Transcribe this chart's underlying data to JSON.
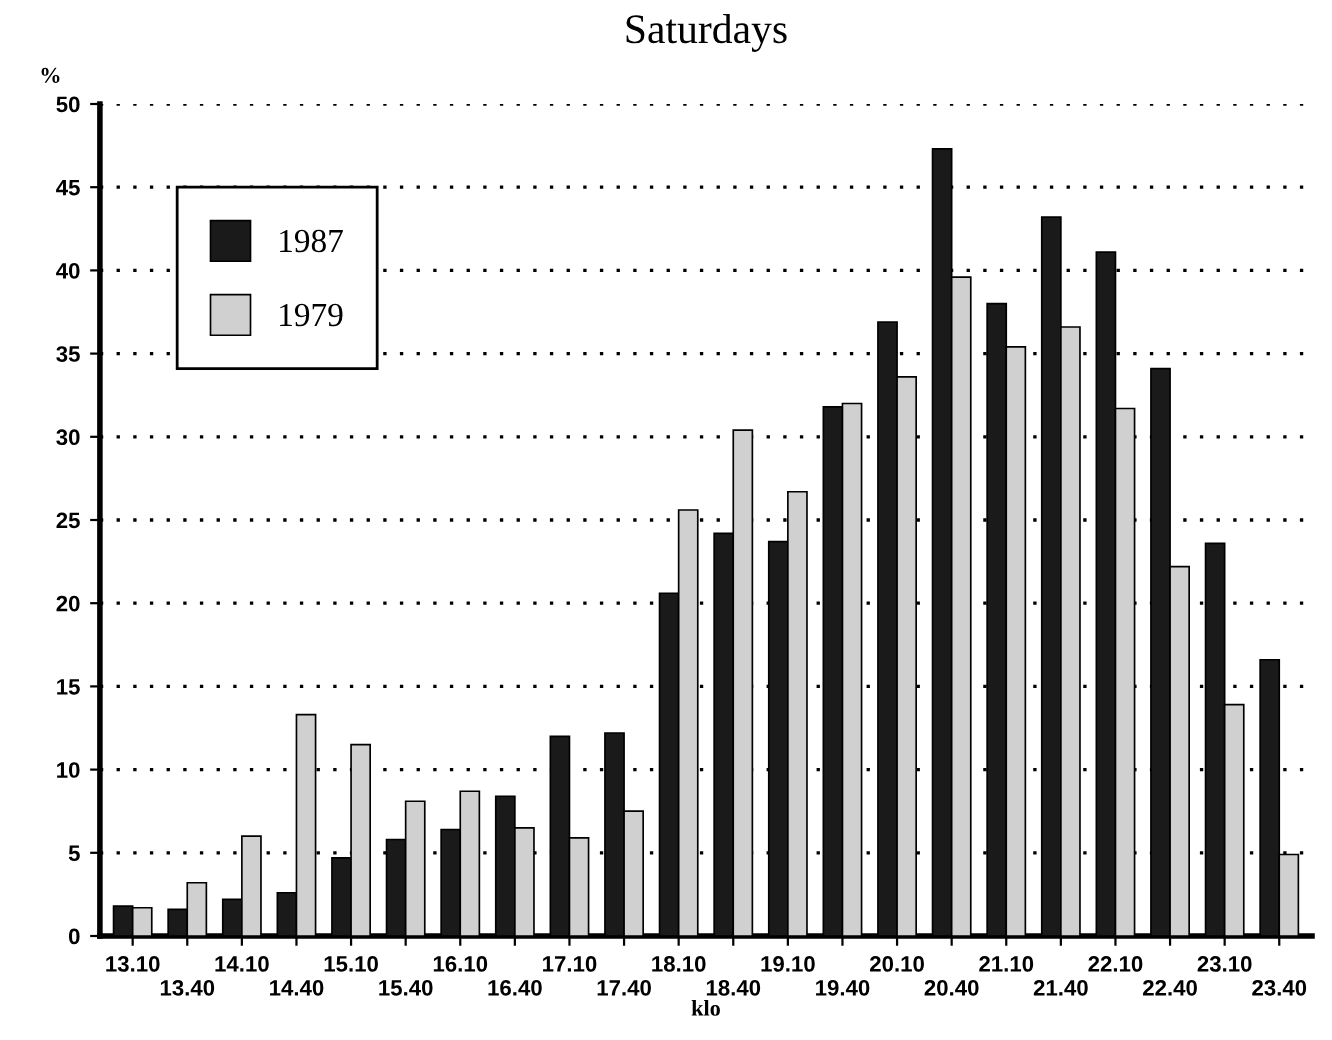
{
  "chart_data": {
    "type": "bar",
    "title": "Saturdays",
    "ylabel": "%",
    "xlabel": "klo",
    "categories": [
      "13.10",
      "13.40",
      "14.10",
      "14.40",
      "15.10",
      "15.40",
      "16.10",
      "16.40",
      "17.10",
      "17.40",
      "18.10",
      "18.40",
      "19.10",
      "19.40",
      "20.10",
      "20.40",
      "21.10",
      "21.40",
      "22.10",
      "22.40",
      "23.10",
      "23.40"
    ],
    "series": [
      {
        "name": "1987",
        "color": "#1a1a1a",
        "values": [
          1.8,
          1.6,
          2.2,
          2.6,
          4.7,
          5.8,
          6.4,
          8.4,
          12,
          12.2,
          20.6,
          24.2,
          23.7,
          31.8,
          36.9,
          47.3,
          38,
          43.2,
          41.1,
          34.1,
          23.6,
          16.6
        ]
      },
      {
        "name": "1979",
        "color": "#d0d0d0",
        "values": [
          1.7,
          3.2,
          6.0,
          13.3,
          11.5,
          8.1,
          8.7,
          6.5,
          5.9,
          7.5,
          25.6,
          30.4,
          26.7,
          32.0,
          33.6,
          39.6,
          35.4,
          36.6,
          31.7,
          22.2,
          13.9,
          4.9
        ]
      }
    ],
    "ylim": [
      0,
      50
    ],
    "yticks": [
      0,
      5,
      10,
      15,
      20,
      25,
      30,
      35,
      40,
      45,
      50
    ],
    "grid": "y",
    "legend": "top left"
  }
}
